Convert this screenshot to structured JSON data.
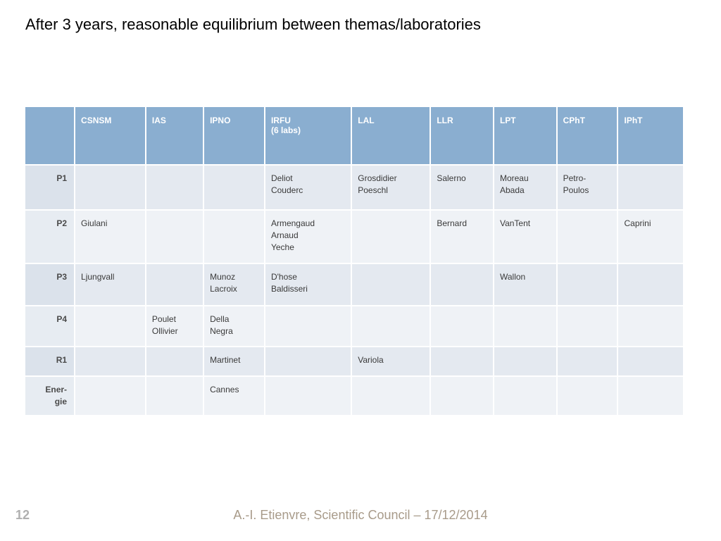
{
  "title": "After 3 years, reasonable equilibrium between themas/laboratories",
  "page_number": "12",
  "footer": "A.-I. Etienvre, Scientific Council – 17/12/2014",
  "table": {
    "columns": [
      "",
      "CSNSM",
      "IAS",
      "IPNO",
      "IRFU\n(6 labs)",
      "LAL",
      "LLR",
      "LPT",
      "CPhT",
      "IPhT"
    ],
    "col_widths_pct": [
      7.5,
      10.8,
      8.8,
      9.3,
      13.2,
      12.0,
      9.6,
      9.6,
      9.3,
      9.9
    ],
    "rows": [
      {
        "key": "P1",
        "cells": [
          "",
          "",
          "",
          "Deliot\nCouderc",
          "Grosdidier\nPoeschl",
          "Salerno",
          "Moreau\nAbada",
          "Petro-\nPoulos",
          ""
        ]
      },
      {
        "key": "P2",
        "cells": [
          "Giulani",
          "",
          "",
          "Armengaud\nArnaud\nYeche",
          "",
          "Bernard",
          "VanTent",
          "",
          "Caprini"
        ]
      },
      {
        "key": "P3",
        "cells": [
          "Ljungvall",
          "",
          "Munoz\nLacroix",
          "D'hose\nBaldisseri",
          "",
          "",
          "Wallon",
          "",
          ""
        ]
      },
      {
        "key": "P4",
        "cells": [
          "",
          "Poulet\nOllivier",
          "Della\nNegra",
          "",
          "",
          "",
          "",
          "",
          ""
        ]
      },
      {
        "key": "R1",
        "cells": [
          "",
          "",
          "Martinet",
          "",
          "Variola",
          "",
          "",
          "",
          ""
        ]
      },
      {
        "key": "Ener-\ngie",
        "cells": [
          "",
          "",
          "Cannes",
          "",
          "",
          "",
          "",
          "",
          ""
        ]
      }
    ],
    "header_bg": "#8aaed0",
    "header_fg": "#ffffff",
    "row_odd_bg": "#e4e9f0",
    "row_even_bg": "#eff2f6",
    "rowhdr_odd_bg": "#dbe2eb",
    "rowhdr_even_bg": "#e7ecf2",
    "cell_fg": "#3a3a3a",
    "font_size_header": 12,
    "font_size_cell": 12
  }
}
